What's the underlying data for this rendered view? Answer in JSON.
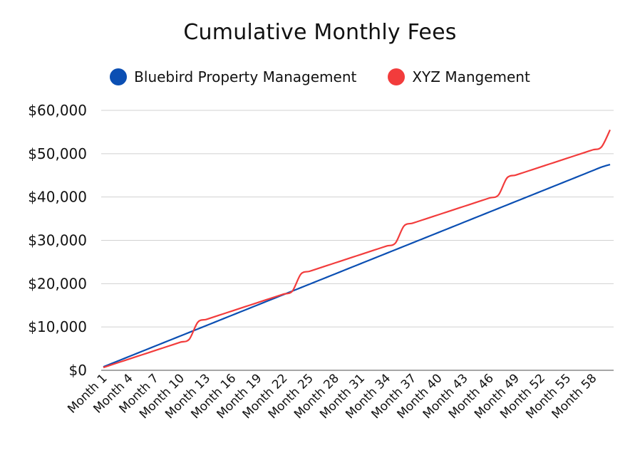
{
  "chart_data": {
    "type": "line",
    "title": "Cumulative Monthly Fees",
    "xlabel": "",
    "ylabel": "",
    "ylim": [
      0,
      60000
    ],
    "yticks": [
      "$0",
      "$10,000",
      "$20,000",
      "$30,000",
      "$40,000",
      "$50,000",
      "$60,000"
    ],
    "xtick_labels": [
      "Month 1",
      "Month 4",
      "Month 7",
      "Month 10",
      "Month 13",
      "Month 16",
      "Month 19",
      "Month 22",
      "Month 25",
      "Month 28",
      "Month 31",
      "Month 34",
      "Month 37",
      "Month 40",
      "Month 43",
      "Month 46",
      "Month 49",
      "Month 52",
      "Month 55",
      "Month 58"
    ],
    "legend_position": "top",
    "grid": true,
    "x": [
      "Month 1",
      "Month 2",
      "Month 3",
      "Month 4",
      "Month 5",
      "Month 6",
      "Month 7",
      "Month 8",
      "Month 9",
      "Month 10",
      "Month 11",
      "Month 12",
      "Month 13",
      "Month 14",
      "Month 15",
      "Month 16",
      "Month 17",
      "Month 18",
      "Month 19",
      "Month 20",
      "Month 21",
      "Month 22",
      "Month 23",
      "Month 24",
      "Month 25",
      "Month 26",
      "Month 27",
      "Month 28",
      "Month 29",
      "Month 30",
      "Month 31",
      "Month 32",
      "Month 33",
      "Month 34",
      "Month 35",
      "Month 36",
      "Month 37",
      "Month 38",
      "Month 39",
      "Month 40",
      "Month 41",
      "Month 42",
      "Month 43",
      "Month 44",
      "Month 45",
      "Month 46",
      "Month 47",
      "Month 48",
      "Month 49",
      "Month 50",
      "Month 51",
      "Month 52",
      "Month 53",
      "Month 54",
      "Month 55",
      "Month 56",
      "Month 57",
      "Month 58",
      "Month 59",
      "Month 60"
    ],
    "series": [
      {
        "name": "Bluebird Property Management",
        "color": "#0b4fb3",
        "values": [
          795,
          1590,
          2385,
          3180,
          3975,
          4770,
          5565,
          6360,
          7155,
          7950,
          8745,
          9540,
          10335,
          11130,
          11925,
          12720,
          13515,
          14310,
          15105,
          15900,
          16695,
          17490,
          18285,
          19080,
          19875,
          20670,
          21465,
          22260,
          23055,
          23850,
          24645,
          25440,
          26235,
          27030,
          27825,
          28620,
          29415,
          30210,
          31005,
          31800,
          32595,
          33390,
          34185,
          34980,
          35775,
          36570,
          37365,
          38160,
          38955,
          39750,
          40545,
          41340,
          42135,
          42930,
          43725,
          44520,
          45315,
          46110,
          46905,
          47500
        ]
      },
      {
        "name": "XYZ Mangement",
        "color": "#f23c3c",
        "values": [
          650,
          1300,
          1950,
          2600,
          3250,
          3900,
          4550,
          5200,
          5850,
          6500,
          7150,
          11100,
          11750,
          12400,
          13050,
          13700,
          14350,
          15000,
          15650,
          16300,
          16950,
          17600,
          18250,
          22200,
          22850,
          23500,
          24150,
          24800,
          25450,
          26100,
          26750,
          27400,
          28050,
          28700,
          29350,
          33300,
          33950,
          34600,
          35250,
          35900,
          36550,
          37200,
          37850,
          38500,
          39150,
          39800,
          40450,
          44400,
          45050,
          45700,
          46350,
          47000,
          47650,
          48300,
          48950,
          49600,
          50250,
          50900,
          51550,
          55500
        ]
      }
    ]
  }
}
